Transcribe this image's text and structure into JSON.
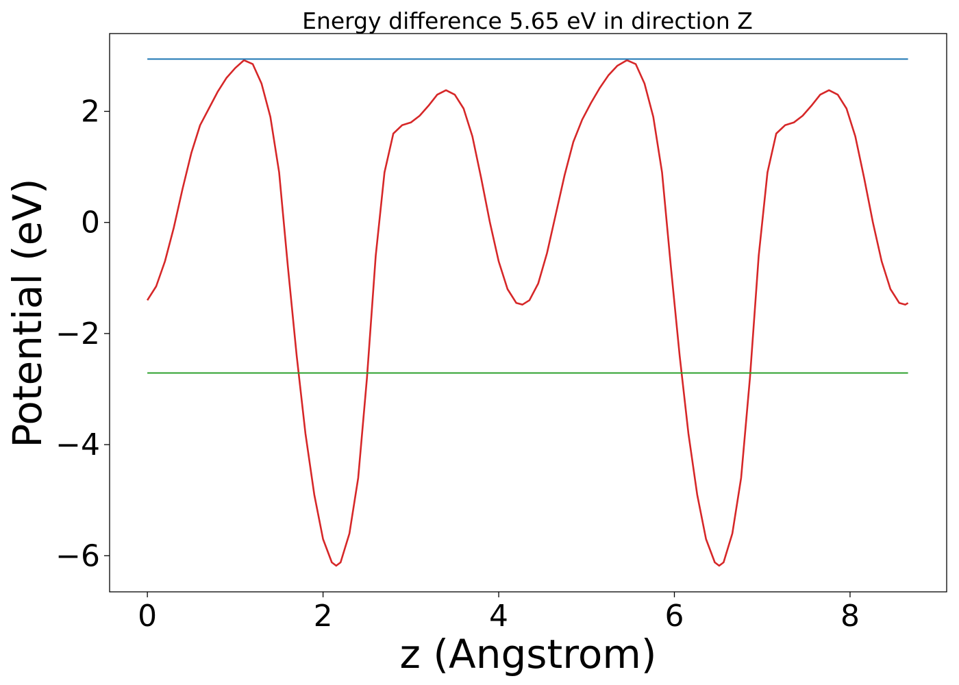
{
  "chart_data": {
    "type": "line",
    "title": "Energy difference 5.65 eV in direction Z",
    "xlabel": "z (Angstrom)",
    "ylabel": "Potential (eV)",
    "xlim": [
      -0.43,
      9.1
    ],
    "ylim": [
      -6.65,
      3.4
    ],
    "xticks": [
      0,
      2,
      4,
      6,
      8
    ],
    "yticks": [
      -6,
      -4,
      -2,
      0,
      2
    ],
    "ytick_labels": [
      "−6",
      "−4",
      "−2",
      "0",
      "2"
    ],
    "grid": false,
    "series": [
      {
        "color": "#d62728",
        "points": [
          [
            0.0,
            -1.4
          ],
          [
            0.1,
            -1.15
          ],
          [
            0.2,
            -0.7
          ],
          [
            0.3,
            -0.1
          ],
          [
            0.4,
            0.6
          ],
          [
            0.5,
            1.25
          ],
          [
            0.6,
            1.75
          ],
          [
            0.7,
            2.05
          ],
          [
            0.8,
            2.35
          ],
          [
            0.9,
            2.6
          ],
          [
            1.0,
            2.78
          ],
          [
            1.1,
            2.92
          ],
          [
            1.2,
            2.85
          ],
          [
            1.3,
            2.5
          ],
          [
            1.4,
            1.9
          ],
          [
            1.5,
            0.9
          ],
          [
            1.6,
            -0.8
          ],
          [
            1.7,
            -2.4
          ],
          [
            1.8,
            -3.8
          ],
          [
            1.9,
            -4.9
          ],
          [
            2.0,
            -5.7
          ],
          [
            2.1,
            -6.12
          ],
          [
            2.15,
            -6.18
          ],
          [
            2.2,
            -6.12
          ],
          [
            2.3,
            -5.6
          ],
          [
            2.4,
            -4.6
          ],
          [
            2.5,
            -2.8
          ],
          [
            2.6,
            -0.6
          ],
          [
            2.7,
            0.9
          ],
          [
            2.8,
            1.6
          ],
          [
            2.9,
            1.75
          ],
          [
            3.0,
            1.8
          ],
          [
            3.1,
            1.92
          ],
          [
            3.2,
            2.1
          ],
          [
            3.3,
            2.3
          ],
          [
            3.4,
            2.38
          ],
          [
            3.5,
            2.3
          ],
          [
            3.6,
            2.05
          ],
          [
            3.7,
            1.55
          ],
          [
            3.8,
            0.8
          ],
          [
            3.9,
            0.0
          ],
          [
            4.0,
            -0.7
          ],
          [
            4.1,
            -1.2
          ],
          [
            4.2,
            -1.45
          ],
          [
            4.27,
            -1.48
          ],
          [
            4.35,
            -1.4
          ],
          [
            4.45,
            -1.1
          ],
          [
            4.55,
            -0.55
          ],
          [
            4.65,
            0.15
          ],
          [
            4.75,
            0.85
          ],
          [
            4.85,
            1.45
          ],
          [
            4.95,
            1.85
          ],
          [
            5.05,
            2.15
          ],
          [
            5.15,
            2.42
          ],
          [
            5.25,
            2.65
          ],
          [
            5.35,
            2.82
          ],
          [
            5.46,
            2.92
          ],
          [
            5.56,
            2.85
          ],
          [
            5.66,
            2.5
          ],
          [
            5.76,
            1.9
          ],
          [
            5.86,
            0.9
          ],
          [
            5.96,
            -0.8
          ],
          [
            6.06,
            -2.4
          ],
          [
            6.16,
            -3.8
          ],
          [
            6.26,
            -4.9
          ],
          [
            6.36,
            -5.7
          ],
          [
            6.46,
            -6.12
          ],
          [
            6.51,
            -6.18
          ],
          [
            6.56,
            -6.12
          ],
          [
            6.66,
            -5.6
          ],
          [
            6.76,
            -4.6
          ],
          [
            6.86,
            -2.8
          ],
          [
            6.96,
            -0.6
          ],
          [
            7.06,
            0.9
          ],
          [
            7.16,
            1.6
          ],
          [
            7.26,
            1.75
          ],
          [
            7.36,
            1.8
          ],
          [
            7.46,
            1.92
          ],
          [
            7.56,
            2.1
          ],
          [
            7.66,
            2.3
          ],
          [
            7.76,
            2.38
          ],
          [
            7.86,
            2.3
          ],
          [
            7.96,
            2.05
          ],
          [
            8.06,
            1.55
          ],
          [
            8.16,
            0.8
          ],
          [
            8.26,
            0.0
          ],
          [
            8.36,
            -0.7
          ],
          [
            8.46,
            -1.2
          ],
          [
            8.56,
            -1.45
          ],
          [
            8.63,
            -1.48
          ],
          [
            8.66,
            -1.45
          ]
        ]
      },
      {
        "color": "#1f77b4",
        "points": [
          [
            0.0,
            2.94
          ],
          [
            8.66,
            2.94
          ]
        ]
      },
      {
        "color": "#2ca02c",
        "points": [
          [
            0.0,
            -2.71
          ],
          [
            8.66,
            -2.71
          ]
        ]
      }
    ]
  }
}
